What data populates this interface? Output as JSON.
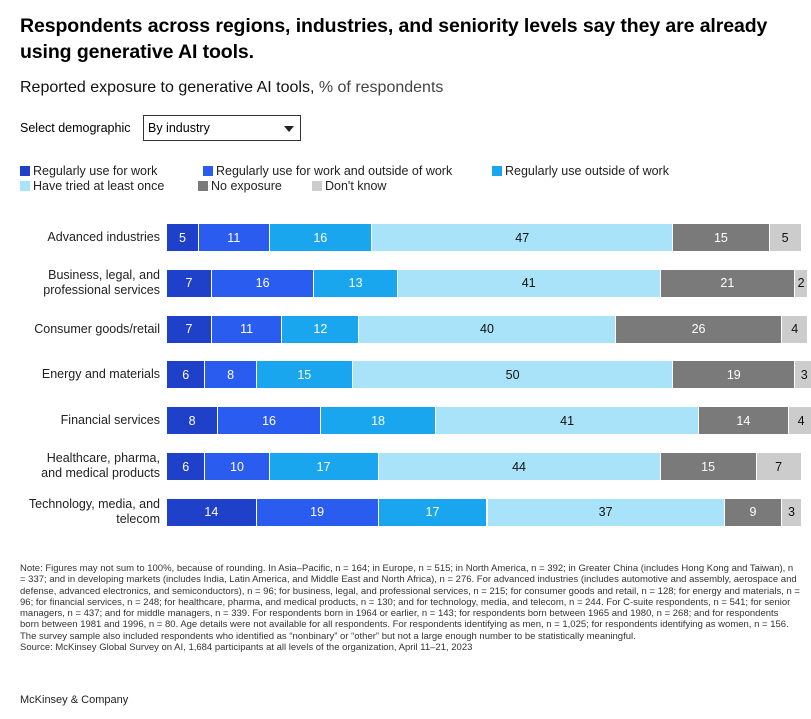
{
  "title": "Respondents across regions, industries, and seniority levels say they are already using generative AI tools.",
  "subtitle": "Reported exposure to generative AI tools,",
  "subtitle_unit": "% of respondents",
  "demographic": {
    "label": "Select demographic",
    "selected": "By industry"
  },
  "chart_data": {
    "type": "bar",
    "orientation": "horizontal",
    "stacked": true,
    "xlim": [
      0,
      100
    ],
    "categories": [
      {
        "line1": "Advanced industries",
        "line2": ""
      },
      {
        "line1": "Business, legal, and",
        "line2": "professional services"
      },
      {
        "line1": "Consumer goods/retail",
        "line2": ""
      },
      {
        "line1": "Energy and materials",
        "line2": ""
      },
      {
        "line1": "Financial services",
        "line2": ""
      },
      {
        "line1": "Healthcare, pharma,",
        "line2": "and medical products"
      },
      {
        "line1": "Technology, media, and",
        "line2": "telecom"
      }
    ],
    "series": [
      {
        "name": "Regularly use for work",
        "color": "#1f40c9",
        "text_color": "#ffffff",
        "values": [
          5,
          7,
          7,
          6,
          8,
          6,
          14
        ]
      },
      {
        "name": "Regularly use for work and outside of work",
        "color": "#2b5cf0",
        "text_color": "#ffffff",
        "values": [
          11,
          16,
          11,
          8,
          16,
          10,
          19
        ]
      },
      {
        "name": "Regularly use outside of work",
        "color": "#1aa6ee",
        "text_color": "#ffffff",
        "values": [
          16,
          13,
          12,
          15,
          18,
          17,
          17
        ]
      },
      {
        "name": "Have tried at least once",
        "color": "#a8e3fa",
        "text_color": "#111111",
        "values": [
          47,
          41,
          40,
          50,
          41,
          44,
          37
        ]
      },
      {
        "name": "No exposure",
        "color": "#7a7a7a",
        "text_color": "#ffffff",
        "values": [
          15,
          21,
          26,
          19,
          14,
          15,
          9
        ]
      },
      {
        "name": "Don't know",
        "color": "#cccccc",
        "text_color": "#111111",
        "values": [
          5,
          2,
          4,
          3,
          4,
          7,
          3
        ]
      }
    ]
  },
  "note": "Note: Figures may not sum to 100%, because of rounding. In Asia–Pacific, n = 164; in Europe, n = 515; in North America, n = 392; in Greater China (includes Hong Kong and Taiwan), n = 337; and in developing markets (includes India, Latin America, and Middle East and North Africa), n = 276. For advanced industries (includes automotive and assembly, aerospace and defense, advanced electronics, and semiconductors), n = 96; for business, legal, and professional services, n = 215; for consumer goods and retail, n = 128; for energy and materials, n = 96; for financial services, n = 248; for healthcare, pharma, and medical products, n = 130; and for technology, media, and telecom, n = 244. For C-suite respondents, n = 541; for senior managers, n = 437; and for middle managers, n = 339. For respondents born in 1964 or earlier, n = 143; for respondents born between 1965 and 1980, n = 268; and for respondents born between 1981 and 1996, n = 80. Age details were not available for all respondents. For respondents identifying as men, n = 1,025; for respondents identifying as women, n = 156. The survey sample also included respondents who identified as “nonbinary” or “other” but not a large enough number to be statistically meaningful.",
  "source": "Source: McKinsey Global Survey on AI, 1,684 participants at all levels of the organization, April 11–21, 2023",
  "footer": "McKinsey & Company"
}
